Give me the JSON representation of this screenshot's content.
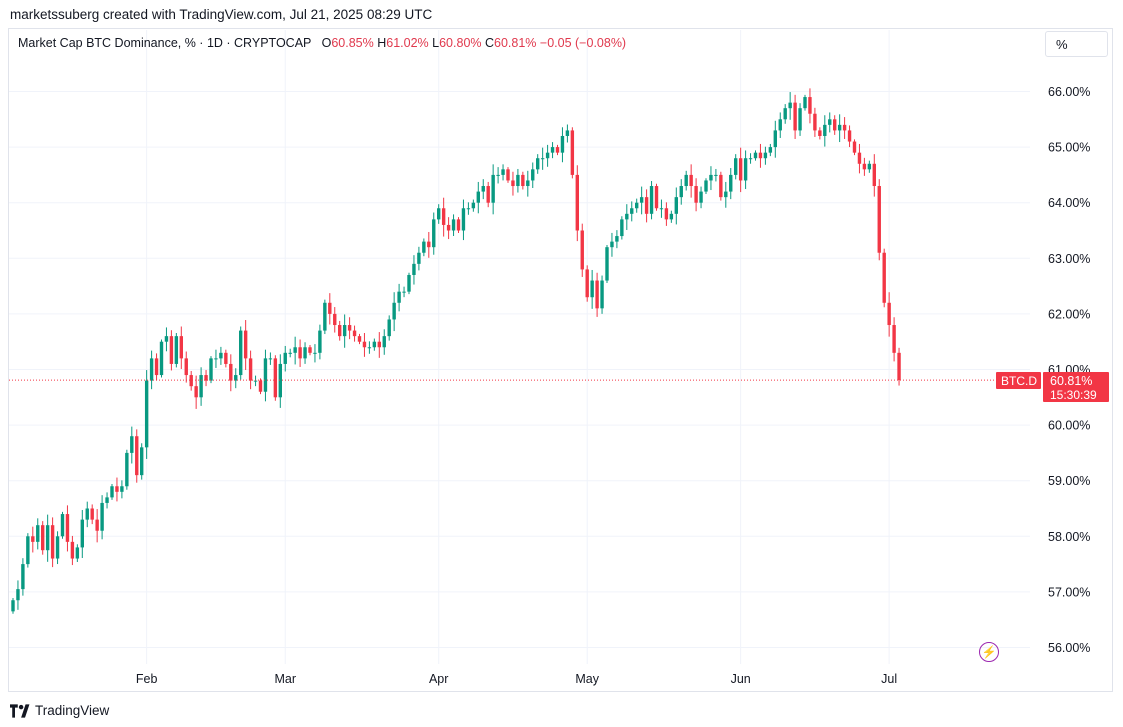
{
  "header": {
    "credit": "marketssuberg created with TradingView.com, Jul 21, 2025 08:29 UTC"
  },
  "legend": {
    "symbol": "Market Cap BTC Dominance, % · 1D · CRYPTOCAP",
    "open_label": "O",
    "open": "60.85%",
    "high_label": "H",
    "high": "61.02%",
    "low_label": "L",
    "low": "60.80%",
    "close_label": "C",
    "close": "60.81%",
    "change": "−0.05 (−0.08%)"
  },
  "scale_button": "%",
  "price_tag": {
    "ticker": "BTC.D",
    "price": "60.81%",
    "countdown": "15:30:39"
  },
  "footer": {
    "brand": "TradingView"
  },
  "icons": {
    "scale": "percent-icon",
    "brand": "tradingview-logo-icon",
    "alert": "lightning-icon"
  },
  "colors": {
    "up": "#089981",
    "down": "#f23645",
    "last_line": "#f23645",
    "grid": "#f0f3fa",
    "alert": "#9c27b0"
  },
  "chart_data": {
    "type": "candlestick",
    "title": "Market Cap BTC Dominance, %",
    "timeframe": "1D",
    "x_ticks": [
      {
        "label": "Feb",
        "index": 27
      },
      {
        "label": "Mar",
        "index": 55
      },
      {
        "label": "Apr",
        "index": 86
      },
      {
        "label": "May",
        "index": 116
      },
      {
        "label": "Jun",
        "index": 147
      },
      {
        "label": "Jul",
        "index": 177
      }
    ],
    "y_ticks": [
      {
        "label": "66.00%",
        "value": 66
      },
      {
        "label": "65.00%",
        "value": 65
      },
      {
        "label": "64.00%",
        "value": 64
      },
      {
        "label": "63.00%",
        "value": 63
      },
      {
        "label": "62.00%",
        "value": 62
      },
      {
        "label": "61.00%",
        "value": 61
      },
      {
        "label": "60.00%",
        "value": 60
      },
      {
        "label": "59.00%",
        "value": 59
      },
      {
        "label": "58.00%",
        "value": 58
      },
      {
        "label": "57.00%",
        "value": 57
      },
      {
        "label": "56.00%",
        "value": 56
      }
    ],
    "ylim": [
      55.4,
      66.8
    ],
    "last_close": 60.81,
    "grid": true,
    "closes": [
      56.85,
      57.05,
      57.5,
      58.0,
      57.9,
      58.2,
      57.75,
      58.2,
      57.6,
      58.0,
      58.4,
      57.9,
      57.6,
      57.8,
      58.3,
      58.5,
      58.3,
      58.1,
      58.6,
      58.7,
      58.9,
      58.8,
      58.9,
      59.5,
      59.8,
      59.1,
      59.6,
      60.8,
      61.2,
      60.9,
      61.5,
      61.6,
      61.1,
      61.6,
      61.2,
      60.9,
      60.7,
      60.5,
      60.9,
      60.8,
      61.2,
      61.2,
      61.3,
      61.1,
      60.8,
      60.9,
      61.7,
      61.2,
      60.8,
      60.8,
      60.6,
      61.2,
      61.2,
      60.5,
      61.1,
      61.3,
      61.3,
      61.4,
      61.2,
      61.4,
      61.3,
      61.3,
      61.7,
      62.2,
      62.0,
      61.8,
      61.6,
      61.8,
      61.7,
      61.6,
      61.5,
      61.4,
      61.4,
      61.5,
      61.4,
      61.6,
      61.9,
      62.2,
      62.4,
      62.4,
      62.7,
      62.9,
      63.1,
      63.3,
      63.2,
      63.7,
      63.9,
      63.6,
      63.5,
      63.7,
      63.5,
      63.9,
      63.9,
      64.0,
      64.2,
      64.3,
      64.0,
      64.5,
      64.5,
      64.6,
      64.4,
      64.3,
      64.5,
      64.3,
      64.4,
      64.6,
      64.8,
      64.8,
      64.9,
      65.0,
      64.9,
      65.2,
      65.3,
      64.5,
      63.5,
      62.8,
      62.3,
      62.6,
      62.1,
      62.6,
      63.2,
      63.3,
      63.4,
      63.7,
      63.8,
      63.9,
      64.0,
      64.1,
      63.8,
      64.3,
      63.9,
      63.9,
      63.7,
      63.8,
      64.1,
      64.3,
      64.5,
      64.3,
      64.0,
      64.2,
      64.4,
      64.5,
      64.5,
      64.1,
      64.2,
      64.5,
      64.8,
      64.4,
      64.8,
      64.8,
      64.9,
      64.8,
      64.9,
      65.0,
      65.3,
      65.5,
      65.7,
      65.8,
      65.3,
      65.7,
      65.9,
      65.6,
      65.3,
      65.2,
      65.4,
      65.5,
      65.3,
      65.4,
      65.3,
      65.1,
      64.9,
      64.7,
      64.6,
      64.7,
      64.3,
      63.1,
      62.2,
      61.8,
      61.3,
      60.81
    ]
  }
}
